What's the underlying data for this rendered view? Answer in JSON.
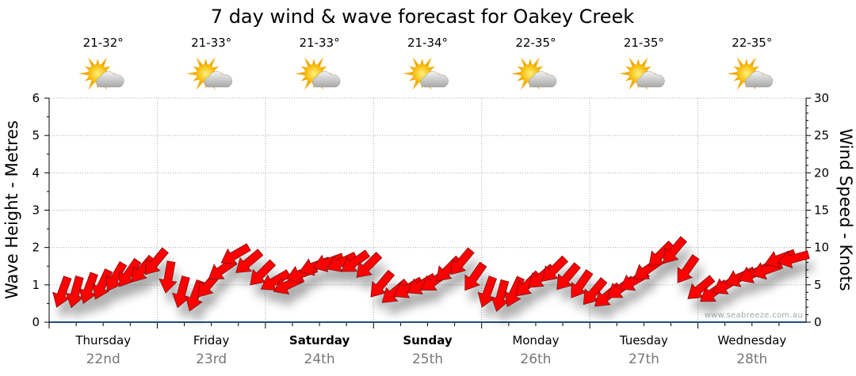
{
  "chart_data": {
    "type": "line",
    "title": "7 day wind & wave forecast for Oakey Creek",
    "ylabel_left": "Wave Height - Metres",
    "ylabel_right": "Wind Speed - Knots",
    "ylim_left": [
      0,
      6
    ],
    "ylim_right": [
      0,
      30
    ],
    "yticks_left": [
      "0",
      "1",
      "2",
      "3",
      "4",
      "5",
      "6"
    ],
    "yticks_right": [
      "0",
      "5",
      "10",
      "15",
      "20",
      "25",
      "30"
    ],
    "grid": true,
    "days": [
      {
        "name": "Thursday",
        "date": "22nd",
        "temp": "21-32°",
        "bold": false,
        "icon": "partly-cloudy-icon"
      },
      {
        "name": "Friday",
        "date": "23rd",
        "temp": "21-33°",
        "bold": false,
        "icon": "partly-cloudy-icon"
      },
      {
        "name": "Saturday",
        "date": "24th",
        "temp": "21-33°",
        "bold": true,
        "icon": "partly-cloudy-icon"
      },
      {
        "name": "Sunday",
        "date": "25th",
        "temp": "21-34°",
        "bold": true,
        "icon": "partly-cloudy-icon"
      },
      {
        "name": "Monday",
        "date": "26th",
        "temp": "22-35°",
        "bold": false,
        "icon": "partly-cloudy-icon"
      },
      {
        "name": "Tuesday",
        "date": "27th",
        "temp": "21-35°",
        "bold": false,
        "icon": "partly-cloudy-icon"
      },
      {
        "name": "Wednesday",
        "date": "28th",
        "temp": "22-35°",
        "bold": false,
        "icon": "partly-cloudy-icon"
      }
    ],
    "wind_series": {
      "name": "Wind Speed (knots)",
      "interval_hours": 3,
      "speed_knots": [
        4,
        4,
        4.5,
        5,
        6,
        6.5,
        7,
        8,
        6,
        4,
        3.5,
        5,
        7,
        9,
        8,
        6.5,
        5.5,
        5,
        6.5,
        7.5,
        8,
        8,
        8,
        7.5,
        5,
        4,
        4.5,
        5,
        5.5,
        7,
        8,
        6,
        4,
        3.5,
        4,
        5,
        6,
        7,
        6,
        5,
        4,
        3.5,
        4.5,
        5.5,
        7,
        9,
        9.5,
        7,
        4.5,
        4,
        5,
        6,
        6.5,
        7,
        8.5,
        8.5
      ],
      "direction_from_deg": [
        20,
        15,
        20,
        25,
        30,
        35,
        40,
        40,
        10,
        15,
        20,
        40,
        55,
        60,
        50,
        45,
        60,
        65,
        70,
        70,
        70,
        65,
        55,
        45,
        40,
        50,
        60,
        60,
        55,
        45,
        40,
        35,
        20,
        15,
        25,
        45,
        50,
        45,
        40,
        35,
        40,
        50,
        55,
        60,
        55,
        45,
        40,
        35,
        50,
        55,
        60,
        65,
        65,
        70,
        70,
        75
      ],
      "color": "#ff0000"
    },
    "watermark": "www.seabreeze.com.au"
  }
}
